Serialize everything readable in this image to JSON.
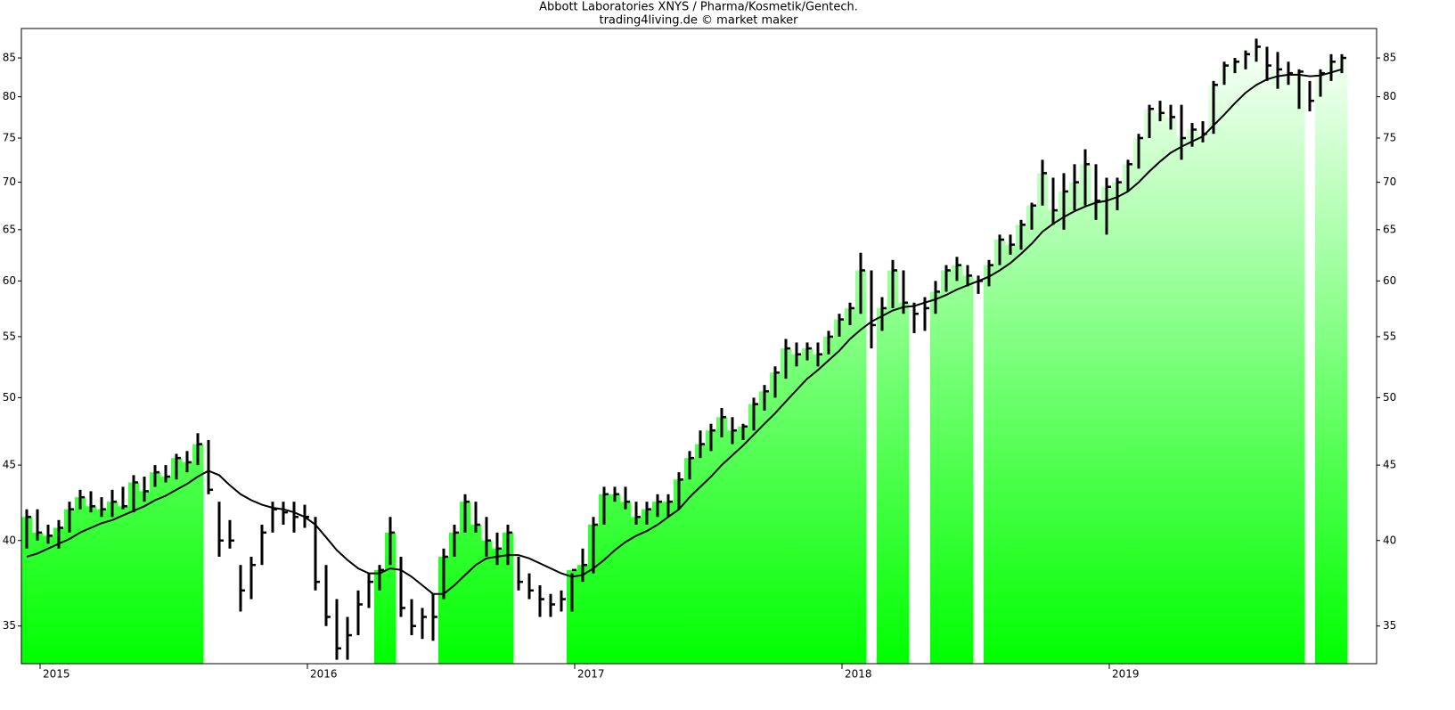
{
  "chart_data": {
    "type": "ohlc",
    "title": "Abbott Laboratories XNYS / Pharma/Kosmetik/Gentech.",
    "subtitle": "trading4living.de © market maker",
    "x": [
      2014.95,
      2014.99,
      2015.03,
      2015.07,
      2015.11,
      2015.15,
      2015.19,
      2015.23,
      2015.27,
      2015.31,
      2015.35,
      2015.39,
      2015.43,
      2015.47,
      2015.51,
      2015.55,
      2015.59,
      2015.63,
      2015.67,
      2015.71,
      2015.75,
      2015.79,
      2015.83,
      2015.87,
      2015.91,
      2015.95,
      2015.99,
      2016.03,
      2016.07,
      2016.11,
      2016.15,
      2016.19,
      2016.23,
      2016.27,
      2016.31,
      2016.35,
      2016.39,
      2016.43,
      2016.47,
      2016.51,
      2016.55,
      2016.59,
      2016.63,
      2016.67,
      2016.71,
      2016.75,
      2016.79,
      2016.83,
      2016.87,
      2016.91,
      2016.95,
      2016.99,
      2017.03,
      2017.07,
      2017.11,
      2017.15,
      2017.19,
      2017.23,
      2017.27,
      2017.31,
      2017.35,
      2017.39,
      2017.43,
      2017.47,
      2017.51,
      2017.55,
      2017.59,
      2017.63,
      2017.67,
      2017.71,
      2017.75,
      2017.79,
      2017.83,
      2017.87,
      2017.91,
      2017.95,
      2017.99,
      2018.03,
      2018.07,
      2018.11,
      2018.15,
      2018.19,
      2018.23,
      2018.27,
      2018.31,
      2018.35,
      2018.39,
      2018.43,
      2018.47,
      2018.51,
      2018.55,
      2018.59,
      2018.63,
      2018.67,
      2018.71,
      2018.75,
      2018.79,
      2018.83,
      2018.87,
      2018.91,
      2018.95,
      2018.99,
      2019.03,
      2019.07,
      2019.11,
      2019.15,
      2019.19,
      2019.23,
      2019.27,
      2019.31,
      2019.35,
      2019.39,
      2019.43,
      2019.47,
      2019.51,
      2019.55,
      2019.59,
      2019.63,
      2019.67,
      2019.71,
      2019.75,
      2019.79,
      2019.83,
      2019.87
    ],
    "high": [
      42,
      42,
      41,
      41.3,
      42.5,
      43.3,
      43.2,
      42.8,
      43.3,
      43.5,
      44.3,
      44.2,
      45,
      45,
      45.8,
      46,
      47.3,
      46.8,
      42.5,
      41.3,
      38.5,
      39,
      41,
      42.5,
      42.5,
      42.5,
      42.3,
      41.5,
      38.5,
      36.5,
      35.5,
      37,
      38,
      38.5,
      41.5,
      39,
      36.5,
      36,
      36.8,
      39.5,
      41,
      43,
      42.5,
      41.5,
      40.5,
      41,
      39,
      38,
      37.3,
      36.8,
      37,
      38,
      39.5,
      41.5,
      43.5,
      43.5,
      43.5,
      42.5,
      42.5,
      43,
      43,
      44.5,
      46,
      47.5,
      48,
      49.2,
      48.5,
      48,
      50,
      51,
      52.5,
      54.8,
      54.5,
      54.5,
      54.5,
      55.5,
      57,
      58,
      62.7,
      61,
      58.5,
      62,
      61,
      58,
      58.5,
      60,
      61.5,
      62.3,
      61.5,
      60.5,
      62,
      64.5,
      64.5,
      66,
      67.8,
      72.5,
      70.5,
      71,
      72,
      73.7,
      72,
      70.5,
      70.5,
      72.5,
      75.5,
      79,
      79.5,
      79,
      79,
      76.8,
      77,
      82,
      84.5,
      85,
      86,
      87.6,
      86.5,
      85.8,
      84.5,
      83.5,
      82,
      83.5,
      85.5,
      85.5
    ],
    "low": [
      39.5,
      40,
      39.8,
      39.5,
      40.5,
      42,
      41.8,
      41.5,
      41.5,
      42,
      41.8,
      42.5,
      43.5,
      43.8,
      44,
      44.5,
      45,
      43,
      39,
      39.5,
      35.8,
      36.5,
      38.5,
      40.5,
      41,
      40.5,
      40.8,
      37,
      35,
      33.2,
      33.2,
      34.5,
      36,
      37,
      38.5,
      35.5,
      34.5,
      34.3,
      34.2,
      36.5,
      39,
      40.5,
      40.5,
      39,
      38.5,
      38.5,
      37,
      36.5,
      35.5,
      35.5,
      35.8,
      35.8,
      37.5,
      38,
      41,
      42.5,
      42,
      41,
      41,
      41.5,
      41.5,
      42,
      44,
      45.5,
      46,
      47,
      46.5,
      46.8,
      47.5,
      49,
      50,
      51.5,
      52.5,
      53,
      52.5,
      53.5,
      55,
      56,
      57,
      54,
      55.5,
      57.5,
      57,
      55.3,
      55.5,
      57,
      59,
      60,
      59.5,
      58.8,
      59.5,
      61.5,
      62.5,
      63,
      65,
      67.5,
      65.5,
      65,
      67,
      67.5,
      66,
      64.5,
      67,
      69,
      71.5,
      75,
      77,
      76,
      72.5,
      74,
      74.5,
      75.5,
      81.5,
      83,
      83.5,
      84.5,
      82,
      81,
      81.5,
      78.5,
      78.2,
      80,
      82,
      83
    ],
    "close": [
      41.5,
      40.5,
      40.3,
      40.8,
      42,
      42.8,
      42.2,
      42,
      42.5,
      42.2,
      43.8,
      43.2,
      44.5,
      44.2,
      45.5,
      45.2,
      46.5,
      43.3,
      40,
      40,
      37,
      38.5,
      40.5,
      42,
      41.8,
      41.5,
      41.5,
      37.5,
      35.5,
      33.8,
      34.5,
      36.2,
      37.5,
      38.2,
      40.5,
      36,
      35,
      35.5,
      35.5,
      39,
      40.5,
      42.5,
      41,
      40,
      39.5,
      40.5,
      37.5,
      37,
      36.5,
      36.2,
      36.5,
      38.2,
      38.5,
      41,
      43,
      43,
      42.5,
      41.5,
      42,
      42.5,
      42.5,
      44,
      45.5,
      46.5,
      47.5,
      48.5,
      47.5,
      47.8,
      49.5,
      50.5,
      52,
      54,
      53.5,
      54,
      53.5,
      55,
      56.5,
      57.5,
      61,
      56,
      57.5,
      61,
      58,
      57,
      57.5,
      59,
      61,
      61.5,
      60.5,
      60,
      61.5,
      64,
      63.5,
      65.5,
      67.5,
      71,
      67,
      69,
      70,
      72,
      68,
      69.5,
      70,
      72,
      75,
      78.5,
      78,
      77.5,
      75,
      76,
      75.5,
      81.5,
      84,
      84.5,
      85.5,
      86.5,
      84,
      83.5,
      83,
      83.2,
      79.5,
      83,
      84.5,
      85
    ],
    "ma": [
      39,
      39.2,
      39.5,
      39.8,
      40.1,
      40.5,
      40.8,
      41.1,
      41.3,
      41.6,
      41.9,
      42.2,
      42.6,
      42.9,
      43.3,
      43.7,
      44.2,
      44.6,
      44.3,
      43.6,
      43,
      42.6,
      42.3,
      42.1,
      42,
      41.8,
      41.5,
      41,
      40.2,
      39.4,
      38.8,
      38.3,
      38,
      38,
      38.3,
      38.2,
      37.8,
      37.3,
      36.8,
      36.8,
      37.3,
      37.9,
      38.5,
      38.9,
      39,
      39.1,
      39.1,
      38.9,
      38.6,
      38.3,
      38,
      37.8,
      37.9,
      38.3,
      38.8,
      39.4,
      39.9,
      40.3,
      40.6,
      41,
      41.5,
      42,
      42.8,
      43.5,
      44.2,
      45,
      45.7,
      46.4,
      47.2,
      48,
      48.8,
      49.7,
      50.6,
      51.5,
      52.2,
      53,
      53.8,
      54.8,
      55.6,
      56.3,
      56.8,
      57.3,
      57.6,
      57.7,
      58,
      58.3,
      58.7,
      59.2,
      59.6,
      60,
      60.4,
      61,
      61.7,
      62.6,
      63.6,
      64.8,
      65.6,
      66.3,
      66.9,
      67.4,
      67.8,
      68,
      68.4,
      69,
      70,
      71.2,
      72.3,
      73.3,
      74,
      74.6,
      75.2,
      76.5,
      77.8,
      79.2,
      80.5,
      81.5,
      82.2,
      82.6,
      82.8,
      82.8,
      82.6,
      82.7,
      83.1,
      83.5
    ],
    "xlim": [
      2014.93,
      2020.0
    ],
    "xticks": [
      2015,
      2016,
      2017,
      2018,
      2019
    ],
    "ylim": [
      33,
      89
    ],
    "yticks": [
      35,
      40,
      45,
      50,
      55,
      60,
      65,
      70,
      75,
      80,
      85
    ],
    "log_scale": true,
    "bar_color": "#000000",
    "ma_color": "#000000",
    "fill_color": "#00ff00"
  }
}
